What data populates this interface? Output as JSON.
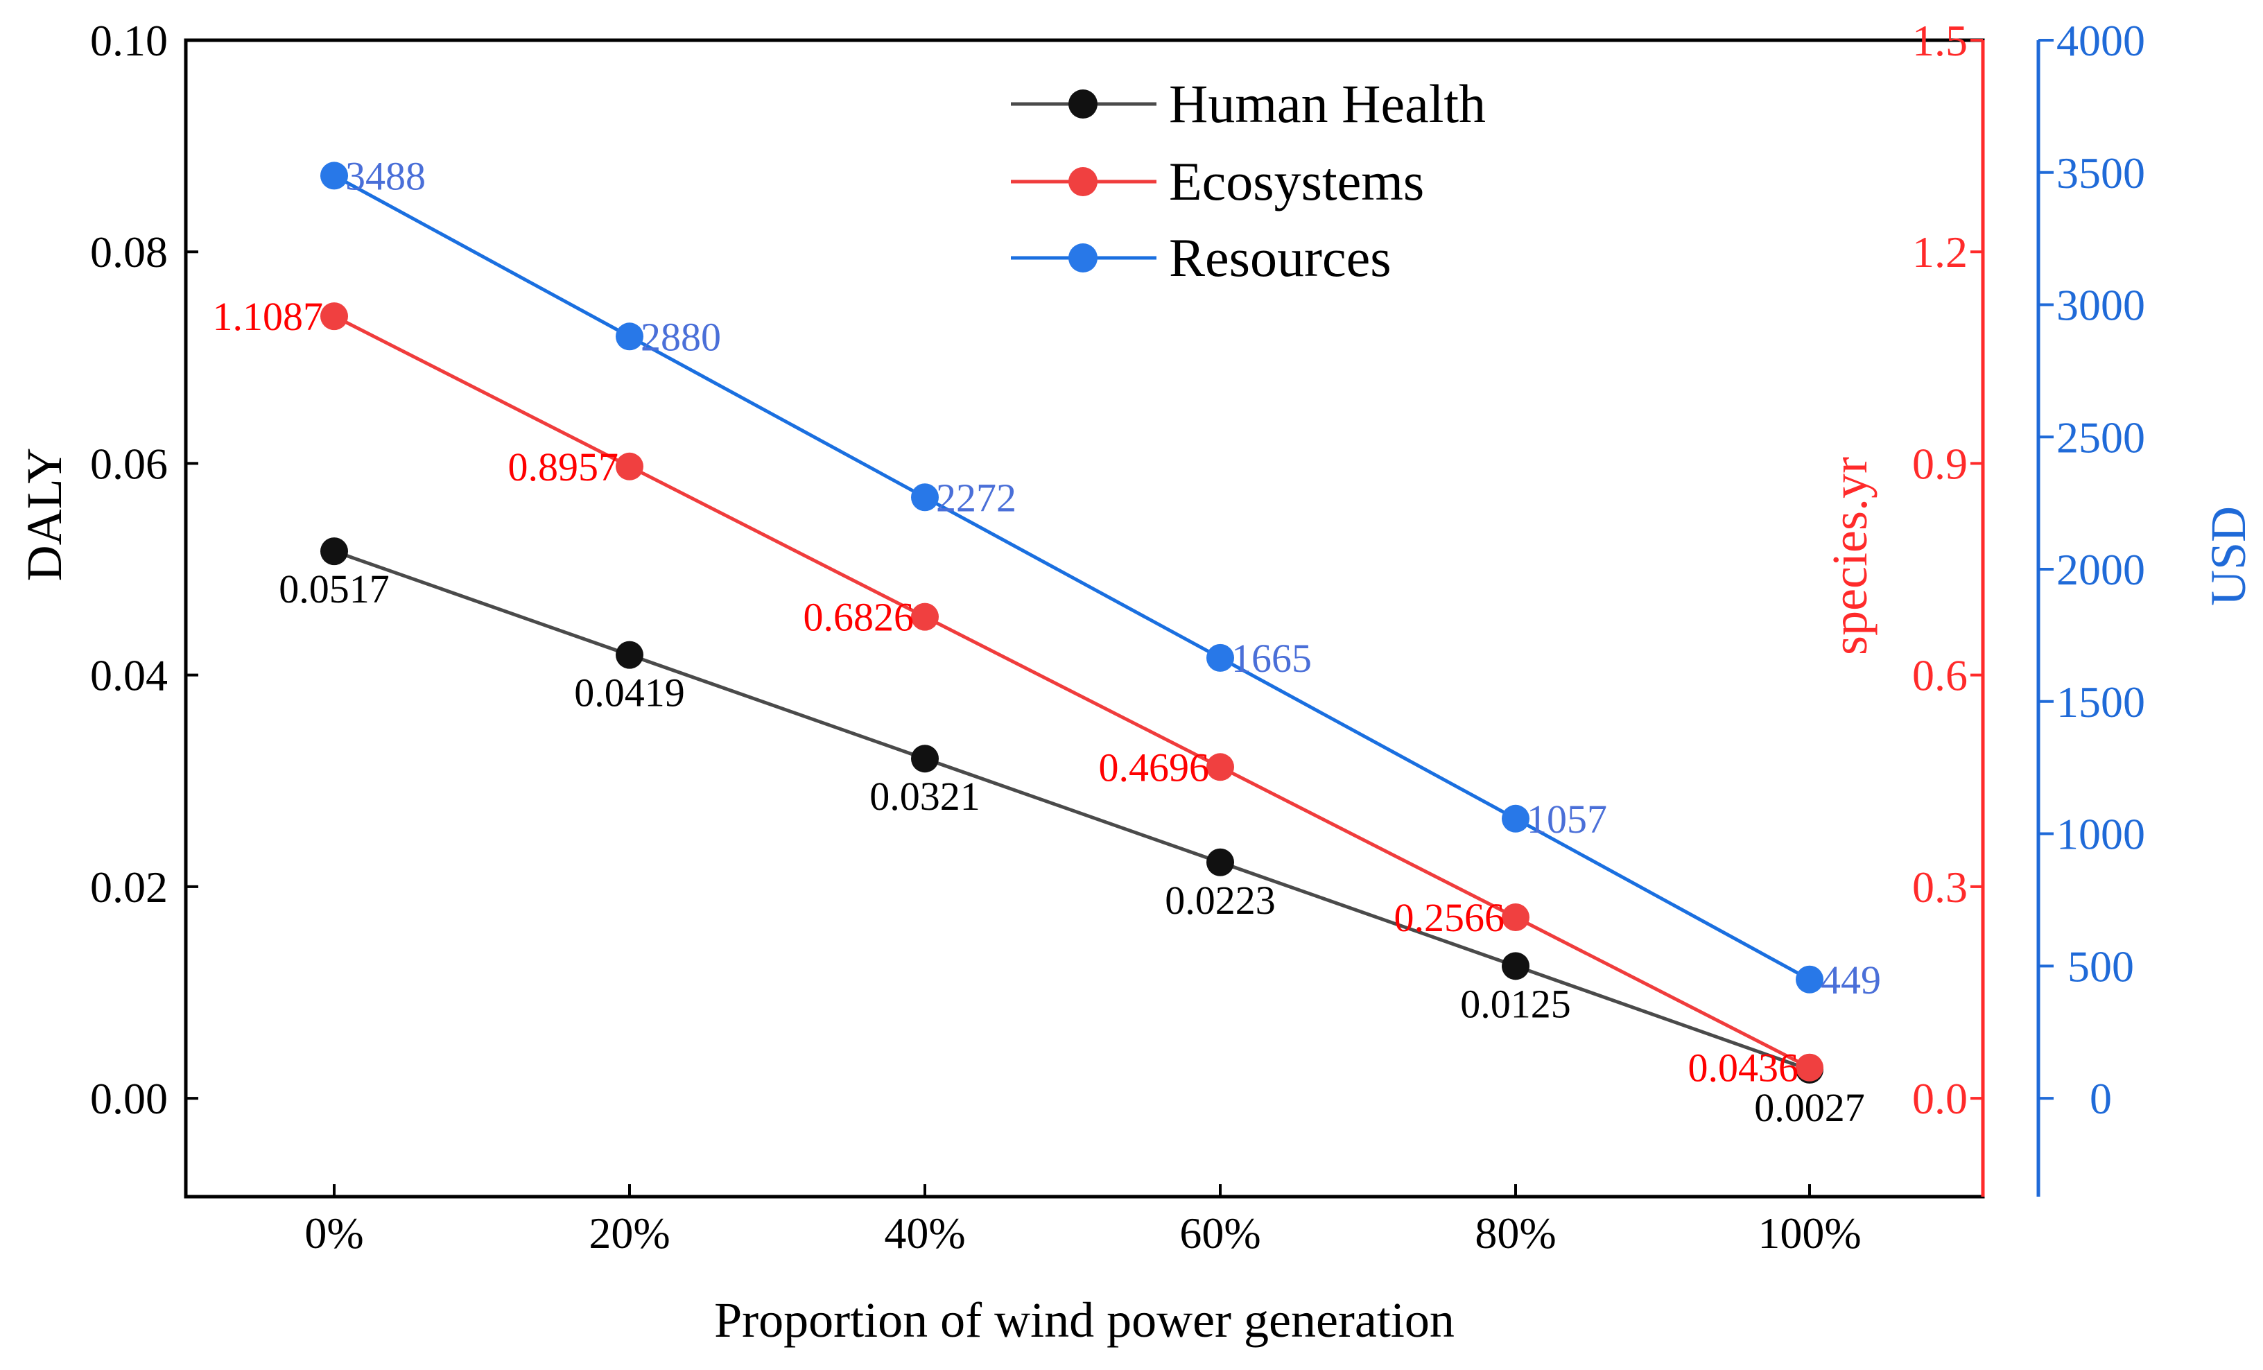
{
  "chart_data": {
    "type": "line",
    "xlabel": "Proportion of wind power generation",
    "categories": [
      "0%",
      "20%",
      "40%",
      "60%",
      "80%",
      "100%"
    ],
    "axes": {
      "left": {
        "label": "DALY",
        "ylim": [
          -0.0093,
          0.1
        ],
        "ticks": [
          "0.00",
          "0.02",
          "0.04",
          "0.06",
          "0.08",
          "0.10"
        ],
        "tick_values": [
          0,
          0.02,
          0.04,
          0.06,
          0.08,
          0.1
        ],
        "color": "#000000"
      },
      "right1": {
        "label": "species.yr",
        "ylim": [
          -0.1395,
          1.5
        ],
        "ticks": [
          "0.0",
          "0.3",
          "0.6",
          "0.9",
          "1.2",
          "1.5"
        ],
        "tick_values": [
          0,
          0.3,
          0.6,
          0.9,
          1.2,
          1.5
        ],
        "color": "#ff2a2a"
      },
      "right2": {
        "label": "USD",
        "ylim": [
          -372,
          4000
        ],
        "ticks": [
          "0",
          "500",
          "1000",
          "1500",
          "2000",
          "2500",
          "3000",
          "3500",
          "4000"
        ],
        "tick_values": [
          0,
          500,
          1000,
          1500,
          2000,
          2500,
          3000,
          3500,
          4000
        ],
        "color": "#1f6ad8"
      }
    },
    "series": [
      {
        "name": "Human Health",
        "axis": "left",
        "color": "#4a4a4a",
        "marker": "#111111",
        "label_color": "#000000",
        "values": [
          0.0517,
          0.0419,
          0.0321,
          0.0223,
          0.0125,
          0.0027
        ],
        "labels": [
          "0.0517",
          "0.0419",
          "0.0321",
          "0.0223",
          "0.0125",
          "0.0027"
        ],
        "label_pos": "below"
      },
      {
        "name": "Ecosystems",
        "axis": "right1",
        "color": "#f03c3c",
        "marker": "#f04040",
        "label_color": "#ff0000",
        "values": [
          1.1087,
          0.8957,
          0.6826,
          0.4696,
          0.2566,
          0.0436
        ],
        "labels": [
          "1.1087",
          "0.8957",
          "0.6826",
          "0.4696",
          "0.2566",
          "0.0436"
        ],
        "label_pos": "left"
      },
      {
        "name": "Resources",
        "axis": "right2",
        "color": "#1a6fe0",
        "marker": "#2878e8",
        "label_color": "#4a6fd8",
        "values": [
          3488,
          2880,
          2272,
          1665,
          1057,
          449
        ],
        "labels": [
          "3488",
          "2880",
          "2272",
          "1665",
          "1057",
          "449"
        ],
        "label_pos": "right"
      }
    ],
    "legend": {
      "position": "top-center",
      "entries": [
        "Human Health",
        "Ecosystems",
        "Resources"
      ]
    }
  }
}
